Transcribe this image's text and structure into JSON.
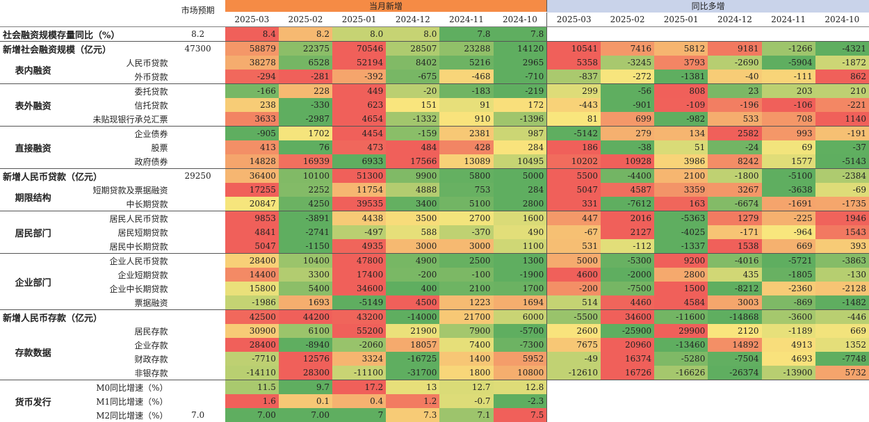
{
  "colors": {
    "header_orange": "#f58b45",
    "header_blue": "#c9d3ea",
    "heat_low": "#5fae60",
    "heat_mid": "#f9e67d",
    "heat_high": "#f0605a"
  },
  "header": {
    "market_label": "市场预期",
    "group_current": "当月新增",
    "group_yoy": "同比多增",
    "months": [
      "2025-03",
      "2025-02",
      "2025-01",
      "2024-12",
      "2024-11",
      "2024-10"
    ]
  },
  "rows": [
    {
      "sep": true,
      "l0": "社会融资规模存量同比（%）",
      "l1": "",
      "l2": "",
      "market": "8.2",
      "cur": [
        "8.4",
        "8.2",
        "8.0",
        "8.0",
        "7.8",
        "7.8"
      ],
      "yoy": []
    },
    {
      "sep": true,
      "l0": "新增社会融资规模（亿元）",
      "l1": "",
      "l2": "",
      "market": "47300",
      "cur": [
        "58879",
        "22375",
        "70546",
        "28507",
        "23288",
        "14120"
      ],
      "yoy": [
        "10541",
        "7416",
        "5812",
        "9181",
        "-1266",
        "-4321"
      ]
    },
    {
      "sep": false,
      "l0": "",
      "l1": "表内融资",
      "l2": "人民币贷款",
      "market": "",
      "cur": [
        "38278",
        "6528",
        "52194",
        "8402",
        "5216",
        "2965"
      ],
      "yoy": [
        "5358",
        "-3245",
        "3793",
        "-2690",
        "-5904",
        "-1872"
      ]
    },
    {
      "sep": false,
      "l0": "",
      "l1": "",
      "l2": "外币贷款",
      "market": "",
      "cur": [
        "-294",
        "-281",
        "-392",
        "-675",
        "-468",
        "-710"
      ],
      "yoy": [
        "-837",
        "-272",
        "-1381",
        "-40",
        "-111",
        "862"
      ]
    },
    {
      "sep": true,
      "l0": "",
      "l1": "表外融资",
      "l2": "委托贷款",
      "market": "",
      "cur": [
        "-166",
        "228",
        "449",
        "-20",
        "-183",
        "-219"
      ],
      "yoy": [
        "299",
        "-56",
        "808",
        "23",
        "203",
        "210"
      ]
    },
    {
      "sep": false,
      "l0": "",
      "l1": "",
      "l2": "信托贷款",
      "market": "",
      "cur": [
        "238",
        "-330",
        "623",
        "151",
        "91",
        "172"
      ],
      "yoy": [
        "-443",
        "-901",
        "-109",
        "-196",
        "-106",
        "-221"
      ]
    },
    {
      "sep": false,
      "l0": "",
      "l1": "",
      "l2": "未贴现银行承兑汇票",
      "market": "",
      "cur": [
        "3633",
        "-2987",
        "4654",
        "-1332",
        "910",
        "-1396"
      ],
      "yoy": [
        "81",
        "699",
        "-982",
        "533",
        "708",
        "1140"
      ]
    },
    {
      "sep": true,
      "l0": "",
      "l1": "直接融资",
      "l2": "企业债券",
      "market": "",
      "cur": [
        "-905",
        "1702",
        "4454",
        "-159",
        "2381",
        "987"
      ],
      "yoy": [
        "-5142",
        "279",
        "134",
        "2582",
        "993",
        "-191"
      ]
    },
    {
      "sep": false,
      "l0": "",
      "l1": "",
      "l2": "股票",
      "market": "",
      "cur": [
        "413",
        "76",
        "473",
        "484",
        "428",
        "284"
      ],
      "yoy": [
        "186",
        "-38",
        "51",
        "-24",
        "69",
        "-37"
      ]
    },
    {
      "sep": false,
      "l0": "",
      "l1": "",
      "l2": "政府债券",
      "market": "",
      "cur": [
        "14828",
        "16939",
        "6933",
        "17566",
        "13089",
        "10495"
      ],
      "yoy": [
        "10202",
        "10928",
        "3986",
        "8242",
        "1577",
        "-5143"
      ]
    },
    {
      "sep": true,
      "l0": "新增人民币贷款（亿元）",
      "l1": "",
      "l2": "",
      "market": "29250",
      "cur": [
        "36400",
        "10100",
        "51300",
        "9900",
        "5800",
        "5000"
      ],
      "yoy": [
        "5500",
        "-4400",
        "2100",
        "-1800",
        "-5100",
        "-2384"
      ]
    },
    {
      "sep": false,
      "l0": "",
      "l1": "期限结构",
      "l2": "短期贷款及票据融资",
      "market": "",
      "cur": [
        "17255",
        "2252",
        "11754",
        "4888",
        "753",
        "284"
      ],
      "yoy": [
        "5047",
        "4587",
        "3359",
        "3267",
        "-3638",
        "-69"
      ]
    },
    {
      "sep": false,
      "l0": "",
      "l1": "",
      "l2": "中长期贷款",
      "market": "",
      "cur": [
        "20847",
        "4250",
        "39535",
        "3400",
        "5100",
        "2800"
      ],
      "yoy": [
        "331",
        "-7612",
        "163",
        "-6674",
        "-1691",
        "-1735"
      ]
    },
    {
      "sep": true,
      "l0": "",
      "l1": "居民部门",
      "l2": "居民人民币贷款",
      "market": "",
      "cur": [
        "9853",
        "-3891",
        "4438",
        "3500",
        "2700",
        "1600"
      ],
      "yoy": [
        "447",
        "2016",
        "-5363",
        "1279",
        "-225",
        "1946"
      ]
    },
    {
      "sep": false,
      "l0": "",
      "l1": "",
      "l2": "居民短期贷款",
      "market": "",
      "cur": [
        "4841",
        "-2741",
        "-497",
        "588",
        "-370",
        "490"
      ],
      "yoy": [
        "-67",
        "2127",
        "-4025",
        "-171",
        "-964",
        "1543"
      ]
    },
    {
      "sep": false,
      "l0": "",
      "l1": "",
      "l2": "居民中长期贷款",
      "market": "",
      "cur": [
        "5047",
        "-1150",
        "4935",
        "3000",
        "3000",
        "1100"
      ],
      "yoy": [
        "531",
        "-112",
        "-1337",
        "1538",
        "669",
        "393"
      ]
    },
    {
      "sep": true,
      "l0": "",
      "l1": "企业部门",
      "l2": "企业人民币贷款",
      "market": "",
      "cur": [
        "28400",
        "10400",
        "47800",
        "4900",
        "2500",
        "1300"
      ],
      "yoy": [
        "5000",
        "-5300",
        "9200",
        "-4016",
        "-5721",
        "-3863"
      ]
    },
    {
      "sep": false,
      "l0": "",
      "l1": "",
      "l2": "企业短期贷款",
      "market": "",
      "cur": [
        "14400",
        "3300",
        "17400",
        "-200",
        "-100",
        "-1900"
      ],
      "yoy": [
        "4600",
        "-2000",
        "2800",
        "435",
        "-1805",
        "-130"
      ]
    },
    {
      "sep": false,
      "l0": "",
      "l1": "",
      "l2": "企业中长期贷款",
      "market": "",
      "cur": [
        "15800",
        "5400",
        "34600",
        "400",
        "2100",
        "1700"
      ],
      "yoy": [
        "-200",
        "-7500",
        "1500",
        "-8212",
        "-2360",
        "-2128"
      ]
    },
    {
      "sep": false,
      "l0": "",
      "l1": "",
      "l2": "票据融资",
      "market": "",
      "cur": [
        "-1986",
        "1693",
        "-5149",
        "4500",
        "1223",
        "1694"
      ],
      "yoy": [
        "514",
        "4460",
        "4584",
        "3003",
        "-869",
        "-1482"
      ]
    },
    {
      "sep": true,
      "l0": "新增人民币存款（亿元）",
      "l1": "",
      "l2": "",
      "market": "",
      "cur": [
        "42500",
        "44200",
        "43200",
        "-14000",
        "21700",
        "6000"
      ],
      "yoy": [
        "-5500",
        "34600",
        "-11600",
        "-14868",
        "-3600",
        "-446"
      ]
    },
    {
      "sep": false,
      "l0": "",
      "l1": "存款数据",
      "l2": "居民存款",
      "market": "",
      "cur": [
        "30900",
        "6100",
        "55200",
        "21900",
        "7900",
        "-5700"
      ],
      "yoy": [
        "2600",
        "-25900",
        "29900",
        "2120",
        "-1189",
        "669"
      ]
    },
    {
      "sep": false,
      "l0": "",
      "l1": "",
      "l2": "企业存款",
      "market": "",
      "cur": [
        "28400",
        "-8940",
        "-2060",
        "18057",
        "7400",
        "-7300"
      ],
      "yoy": [
        "7675",
        "20960",
        "-13460",
        "14892",
        "4913",
        "1352"
      ]
    },
    {
      "sep": false,
      "l0": "",
      "l1": "",
      "l2": "财政存款",
      "market": "",
      "cur": [
        "-7710",
        "12576",
        "3324",
        "-16725",
        "1400",
        "5952"
      ],
      "yoy": [
        "-49",
        "16374",
        "-5280",
        "-7504",
        "4693",
        "-7748"
      ]
    },
    {
      "sep": false,
      "l0": "",
      "l1": "",
      "l2": "非银存款",
      "market": "",
      "cur": [
        "-14110",
        "28300",
        "-11100",
        "-31700",
        "1800",
        "10800"
      ],
      "yoy": [
        "-12610",
        "16726",
        "-16626",
        "-26374",
        "-13900",
        "5732"
      ]
    },
    {
      "sep": true,
      "l0": "",
      "l1": "货币发行",
      "l2": "M0同比增速（%）",
      "market": "",
      "cur": [
        "11.5",
        "9.7",
        "17.2",
        "13",
        "12.7",
        "12.8"
      ],
      "yoy": []
    },
    {
      "sep": false,
      "l0": "",
      "l1": "",
      "l2": "M1同比增速（%）",
      "market": "",
      "cur": [
        "1.6",
        "0.1",
        "0.4",
        "1.2",
        "-0.7",
        "-2.3"
      ],
      "yoy": []
    },
    {
      "sep": false,
      "l0": "",
      "l1": "",
      "l2": "M2同比增速（%）",
      "market": "7.0",
      "cur": [
        "7.00",
        "7.00",
        "7",
        "7.3",
        "7.1",
        "7.5"
      ],
      "yoy": []
    }
  ]
}
